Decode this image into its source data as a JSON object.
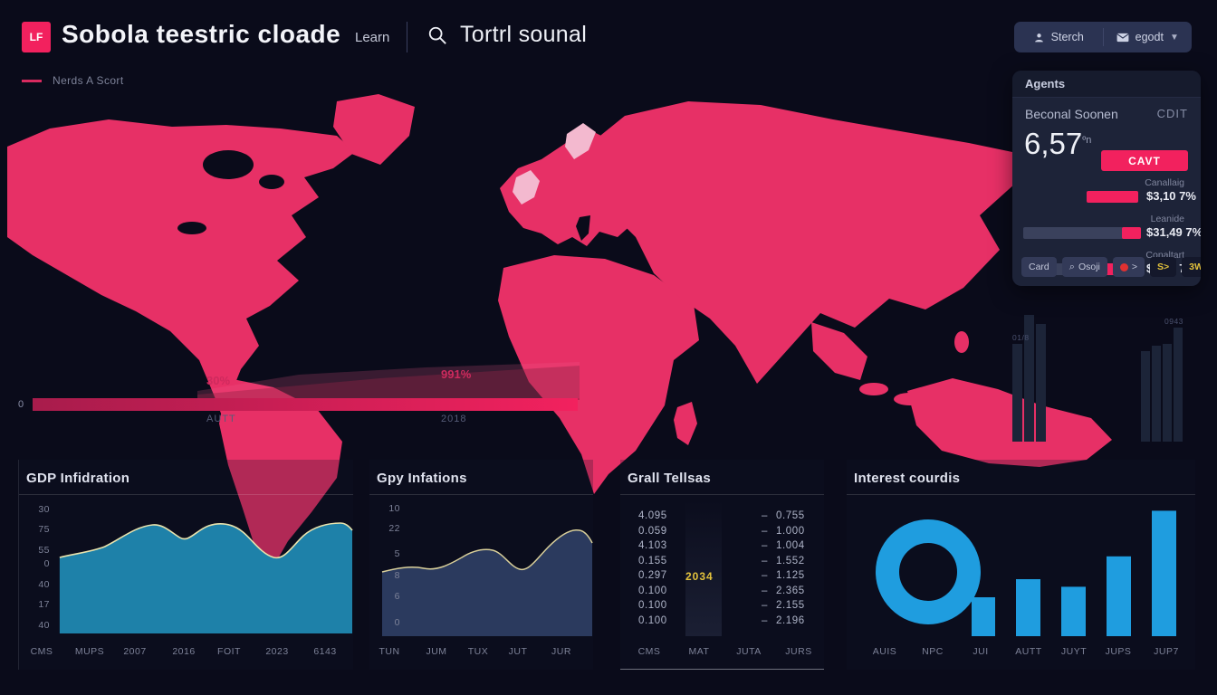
{
  "colors": {
    "background": "#0a0b1a",
    "map_pink": "#e73066",
    "accent_pink": "#f2215e",
    "blue": "#1f9ddf",
    "teal_area": "#1e81a9",
    "navy_area": "#2b3a5e",
    "line_yellow": "#e9e3ad",
    "highlight_yellow": "#e3c23c"
  },
  "header": {
    "logo": "LF",
    "title": "Sobola teestric cloade",
    "nav_link": "Learn",
    "search_text": "Tortrl sounal",
    "action_search": "Sterch",
    "action_account": "egodt",
    "legend_label": "Nerds A Scort"
  },
  "map_chart": {
    "zero_label": "0",
    "value_left": "30%",
    "value_right": "991%",
    "axis_left": "AUTT",
    "axis_right": "2018",
    "faint_label_a": "01/8",
    "faint_label_b": "0943"
  },
  "agents_panel": {
    "title": "Agents",
    "row_label": "Beconal Soonen",
    "row_action": "CDIT",
    "big_value": "6,57",
    "big_value_sup": "ºn",
    "cta": "CAVT",
    "metrics": [
      {
        "label": "Canallaig",
        "value": "$3,10 7%",
        "track": false,
        "fill_start": 54,
        "fill_end": 98
      },
      {
        "label": "Leanide",
        "value": "$31,49 7%",
        "track": true,
        "fill_start": 84,
        "fill_end": 100
      },
      {
        "label": "Conaltart",
        "value": "$4,58 7%",
        "track": true,
        "fill_start": 62,
        "fill_end": 97
      }
    ],
    "chips": [
      {
        "label": "Card",
        "icon": "none",
        "style": "light"
      },
      {
        "label": "Osoji",
        "icon": "magnifier",
        "style": "light"
      },
      {
        "label": ">",
        "icon": "red-dot",
        "style": "light"
      },
      {
        "label": "S>",
        "icon": "none",
        "style": "gold"
      },
      {
        "label": "3WF",
        "icon": "red-bar",
        "style": "gold"
      }
    ]
  },
  "chart_data": [
    {
      "id": "gdp",
      "type": "area",
      "title": "GDP Infidration",
      "y_ticks": [
        "30",
        "75",
        "55",
        "0",
        "40",
        "17",
        "40"
      ],
      "x_ticks": [
        "CMS",
        "MUPS",
        "2007",
        "2016",
        "FOIT",
        "2023",
        "6143"
      ],
      "values_est": [
        55,
        58,
        64,
        75,
        70,
        74,
        72,
        58,
        52,
        66,
        75,
        75,
        73
      ],
      "fill": "#1e81a9",
      "line": "#e9e3ad",
      "grid": false,
      "legend": "none"
    },
    {
      "id": "gpy",
      "type": "area",
      "title": "Gpy Infations",
      "y_ticks": [
        "10",
        "22",
        "5",
        "8",
        "6",
        "0"
      ],
      "x_ticks": [
        "TUN",
        "JUM",
        "TUX",
        "JUT",
        "JUR"
      ],
      "values_est": [
        5.0,
        5.2,
        5.1,
        5.6,
        6.4,
        6.2,
        5.3,
        5.2,
        6.8,
        8.2,
        8.4,
        7.4
      ],
      "fill": "#2b3a5e",
      "line": "#d9cf9a",
      "grid": false,
      "legend": "none"
    },
    {
      "id": "grall",
      "type": "table",
      "title": "Grall Tellsas",
      "highlight": "2034",
      "col_left": [
        "4.095",
        "0.059",
        "4.103",
        "0.155",
        "0.297",
        "0.100",
        "0.100",
        "0.100"
      ],
      "col_right": [
        "0.755",
        "1.000",
        "1.004",
        "1.552",
        "1.125",
        "2.365",
        "2.155",
        "2.196"
      ],
      "x_ticks": [
        "CMS",
        "MAT",
        "JUTA",
        "JURS"
      ]
    },
    {
      "id": "interest",
      "type": "donut-bar",
      "title": "Interest courdis",
      "x_ticks": [
        "AUIS",
        "NPC",
        "JUI",
        "AUTT",
        "JUYT",
        "JUPS",
        "JUP7"
      ],
      "donut_value": 100,
      "tail_value": 20,
      "bar_values": [
        30,
        26,
        42,
        66
      ],
      "color": "#1f9ddf"
    }
  ]
}
